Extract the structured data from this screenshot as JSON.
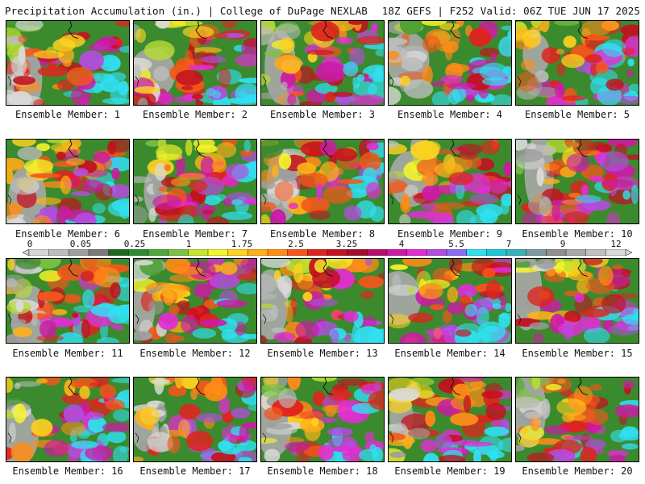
{
  "header": {
    "left": "Precipitation Accumulation (in.) | College of DuPage NEXLAB",
    "right": "18Z GEFS | F252 Valid: 06Z TUE JUN 17 2025"
  },
  "colorbar": {
    "ticks": [
      "0",
      "0.05",
      "0.25",
      "1",
      "1.75",
      "2.5",
      "3.25",
      "4",
      "5.5",
      "7",
      "9",
      "12"
    ],
    "colors": [
      "#d6d6d6",
      "#bdbdbd",
      "#a0a0a0",
      "#7a7a7a",
      "#1e6b1e",
      "#2e8b2e",
      "#4ea83a",
      "#7dc242",
      "#c7e32f",
      "#f4f42a",
      "#ffd21f",
      "#ffb01a",
      "#ff8c18",
      "#f5561a",
      "#e0231e",
      "#c4101f",
      "#a40c2e",
      "#b5106e",
      "#cc1aa6",
      "#e02ed2",
      "#b44ce0",
      "#8d6bf2",
      "#30e0f2",
      "#1ec8d8",
      "#38b2b8",
      "#7a9aa0",
      "#8f8f8f",
      "#a8a8a8",
      "#c0c0c0",
      "#d8d8d8"
    ]
  },
  "panels": [
    {
      "label": "Ensemble Member: 1"
    },
    {
      "label": "Ensemble Member: 2"
    },
    {
      "label": "Ensemble Member: 3"
    },
    {
      "label": "Ensemble Member: 4"
    },
    {
      "label": "Ensemble Member: 5"
    },
    {
      "label": "Ensemble Member: 6"
    },
    {
      "label": "Ensemble Member: 7"
    },
    {
      "label": "Ensemble Member: 8"
    },
    {
      "label": "Ensemble Member: 9"
    },
    {
      "label": "Ensemble Member: 10"
    },
    {
      "label": "Ensemble Member: 11"
    },
    {
      "label": "Ensemble Member: 12"
    },
    {
      "label": "Ensemble Member: 13"
    },
    {
      "label": "Ensemble Member: 14"
    },
    {
      "label": "Ensemble Member: 15"
    },
    {
      "label": "Ensemble Member: 16"
    },
    {
      "label": "Ensemble Member: 17"
    },
    {
      "label": "Ensemble Member: 18"
    },
    {
      "label": "Ensemble Member: 19"
    },
    {
      "label": "Ensemble Member: 20"
    }
  ]
}
